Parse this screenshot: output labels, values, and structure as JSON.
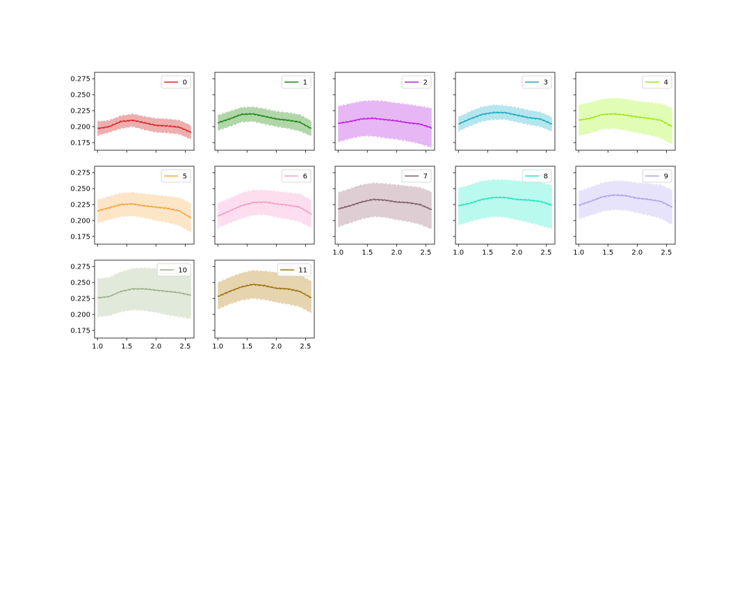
{
  "chart_data": {
    "type": "area",
    "layout": {
      "rows": 3,
      "cols": 5,
      "sharex": true,
      "sharey": true
    },
    "xlim": [
      0.95,
      2.65
    ],
    "ylim": [
      0.163,
      0.285
    ],
    "x_ticks": [
      1.0,
      1.5,
      2.0,
      2.5
    ],
    "x_tick_labels": [
      "1.0",
      "1.5",
      "2.0",
      "2.5"
    ],
    "y_ticks": [
      0.175,
      0.2,
      0.225,
      0.25,
      0.275
    ],
    "y_tick_labels": [
      "0.175",
      "0.200",
      "0.225",
      "0.250",
      "0.275"
    ],
    "legend_position": "upper right",
    "x": [
      1.0,
      1.2,
      1.4,
      1.6,
      1.8,
      2.0,
      2.2,
      2.4,
      2.6
    ],
    "series": [
      {
        "name": "0",
        "color": "#d62728",
        "fill": "#eaa0a0",
        "mean": [
          0.197,
          0.2,
          0.208,
          0.21,
          0.206,
          0.202,
          0.201,
          0.199,
          0.191
        ],
        "lower": [
          0.186,
          0.191,
          0.197,
          0.2,
          0.195,
          0.191,
          0.19,
          0.188,
          0.18
        ],
        "upper": [
          0.208,
          0.21,
          0.217,
          0.22,
          0.216,
          0.213,
          0.212,
          0.21,
          0.202
        ]
      },
      {
        "name": "1",
        "color": "#1a8a10",
        "fill": "#a3cf9a",
        "mean": [
          0.206,
          0.212,
          0.219,
          0.22,
          0.216,
          0.212,
          0.21,
          0.207,
          0.197
        ],
        "lower": [
          0.194,
          0.2,
          0.207,
          0.208,
          0.204,
          0.2,
          0.197,
          0.193,
          0.185
        ],
        "upper": [
          0.218,
          0.224,
          0.23,
          0.231,
          0.228,
          0.224,
          0.222,
          0.219,
          0.209
        ]
      },
      {
        "name": "2",
        "color": "#bf1de0",
        "fill": "#e3aaf3",
        "mean": [
          0.205,
          0.208,
          0.212,
          0.213,
          0.211,
          0.209,
          0.206,
          0.204,
          0.198
        ],
        "lower": [
          0.176,
          0.181,
          0.185,
          0.185,
          0.182,
          0.18,
          0.177,
          0.173,
          0.167
        ],
        "upper": [
          0.232,
          0.236,
          0.24,
          0.241,
          0.24,
          0.237,
          0.235,
          0.232,
          0.229
        ]
      },
      {
        "name": "3",
        "color": "#1aa9c2",
        "fill": "#a8e0ea",
        "mean": [
          0.204,
          0.212,
          0.219,
          0.222,
          0.222,
          0.218,
          0.214,
          0.212,
          0.204
        ],
        "lower": [
          0.193,
          0.201,
          0.208,
          0.211,
          0.211,
          0.207,
          0.203,
          0.2,
          0.192
        ],
        "upper": [
          0.215,
          0.224,
          0.231,
          0.234,
          0.233,
          0.23,
          0.226,
          0.223,
          0.215
        ]
      },
      {
        "name": "4",
        "color": "#9be81d",
        "fill": "#dcfba7",
        "mean": [
          0.21,
          0.213,
          0.219,
          0.22,
          0.218,
          0.215,
          0.213,
          0.21,
          0.2
        ],
        "lower": [
          0.186,
          0.19,
          0.196,
          0.197,
          0.194,
          0.19,
          0.187,
          0.182,
          0.172
        ],
        "upper": [
          0.234,
          0.238,
          0.243,
          0.245,
          0.243,
          0.24,
          0.238,
          0.236,
          0.229
        ]
      },
      {
        "name": "5",
        "color": "#f5a340",
        "fill": "#fde0bd",
        "mean": [
          0.215,
          0.22,
          0.225,
          0.226,
          0.223,
          0.221,
          0.219,
          0.215,
          0.204
        ],
        "lower": [
          0.196,
          0.201,
          0.206,
          0.207,
          0.204,
          0.2,
          0.197,
          0.192,
          0.181
        ],
        "upper": [
          0.233,
          0.238,
          0.243,
          0.244,
          0.242,
          0.24,
          0.238,
          0.236,
          0.227
        ]
      },
      {
        "name": "6",
        "color": "#f59ac8",
        "fill": "#fdd8ec",
        "mean": [
          0.207,
          0.215,
          0.223,
          0.228,
          0.229,
          0.226,
          0.224,
          0.221,
          0.21
        ],
        "lower": [
          0.188,
          0.196,
          0.203,
          0.208,
          0.209,
          0.205,
          0.202,
          0.198,
          0.188
        ],
        "upper": [
          0.227,
          0.235,
          0.243,
          0.248,
          0.248,
          0.246,
          0.244,
          0.242,
          0.232
        ]
      },
      {
        "name": "7",
        "color": "#7e5b68",
        "fill": "#d8c4ca",
        "mean": [
          0.218,
          0.223,
          0.229,
          0.233,
          0.232,
          0.229,
          0.228,
          0.225,
          0.217
        ],
        "lower": [
          0.19,
          0.196,
          0.202,
          0.206,
          0.205,
          0.201,
          0.198,
          0.194,
          0.186
        ],
        "upper": [
          0.244,
          0.25,
          0.256,
          0.259,
          0.258,
          0.256,
          0.254,
          0.252,
          0.245
        ]
      },
      {
        "name": "8",
        "color": "#1fe7c2",
        "fill": "#aef8ea",
        "mean": [
          0.223,
          0.227,
          0.233,
          0.236,
          0.236,
          0.233,
          0.232,
          0.23,
          0.224
        ],
        "lower": [
          0.193,
          0.198,
          0.203,
          0.206,
          0.205,
          0.201,
          0.197,
          0.192,
          0.187
        ],
        "upper": [
          0.251,
          0.256,
          0.262,
          0.264,
          0.264,
          0.262,
          0.262,
          0.26,
          0.255
        ]
      },
      {
        "name": "9",
        "color": "#b0a2ec",
        "fill": "#e2defa",
        "mean": [
          0.224,
          0.23,
          0.237,
          0.24,
          0.239,
          0.235,
          0.233,
          0.23,
          0.221
        ],
        "lower": [
          0.202,
          0.208,
          0.214,
          0.217,
          0.216,
          0.212,
          0.208,
          0.203,
          0.193
        ],
        "upper": [
          0.246,
          0.252,
          0.259,
          0.262,
          0.262,
          0.259,
          0.258,
          0.256,
          0.248
        ]
      },
      {
        "name": "10",
        "color": "#9db08a",
        "fill": "#dce5d4",
        "mean": [
          0.226,
          0.228,
          0.236,
          0.24,
          0.24,
          0.238,
          0.236,
          0.234,
          0.23
        ],
        "lower": [
          0.196,
          0.198,
          0.204,
          0.207,
          0.206,
          0.203,
          0.199,
          0.196,
          0.193
        ],
        "upper": [
          0.256,
          0.258,
          0.267,
          0.272,
          0.273,
          0.272,
          0.271,
          0.27,
          0.266
        ]
      },
      {
        "name": "11",
        "color": "#a1700d",
        "fill": "#e0cca0",
        "mean": [
          0.228,
          0.236,
          0.243,
          0.247,
          0.245,
          0.241,
          0.24,
          0.236,
          0.226
        ],
        "lower": [
          0.208,
          0.216,
          0.222,
          0.225,
          0.223,
          0.219,
          0.216,
          0.212,
          0.202
        ],
        "upper": [
          0.25,
          0.258,
          0.265,
          0.269,
          0.268,
          0.266,
          0.266,
          0.262,
          0.252
        ]
      }
    ]
  }
}
